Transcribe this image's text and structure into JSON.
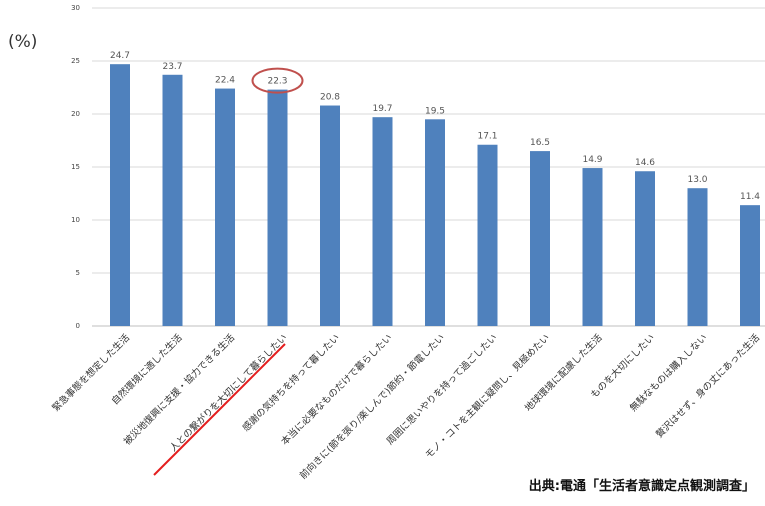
{
  "unit_label": "(%)",
  "source": "出典:電通「生活者意識定点観測調査」",
  "colors": {
    "bar": "#4f81bd",
    "grid": "#d9d9d9",
    "highlight_circle": "#c0504d",
    "highlight_line": "#e41e1e"
  },
  "chart_data": {
    "type": "bar",
    "ylim": [
      0,
      30
    ],
    "yticks": [
      0,
      5,
      10,
      15,
      20,
      25,
      30
    ],
    "grid": true,
    "highlight_index": 3,
    "categories": [
      "緊急事態を想定した生活",
      "自然環境に適した生活",
      "被災地復興に支援・協力できる生活",
      "人との繋がりを大切にして暮らしたい",
      "感謝の気持ちを持って暮したい",
      "本当に必要なものだけで暮らしたい",
      "前向きに(節を張り/楽しんで)節約・節電したい",
      "周囲に思いやりを持って過ごしたい",
      "モノ・コトを主観に疑問し、見極めたい",
      "地球環境に配慮した生活",
      "ものを大切にしたい",
      "無駄なものは購入しない",
      "贅沢はせず、身の丈にあった生活"
    ],
    "values": [
      24.7,
      23.7,
      22.4,
      22.3,
      20.8,
      19.7,
      19.5,
      17.1,
      16.5,
      14.9,
      14.6,
      13.0,
      11.4
    ],
    "value_labels": [
      "24.7",
      "23.7",
      "22.4",
      "22.3",
      "20.8",
      "19.7",
      "19.5",
      "17.1",
      "16.5",
      "14.9",
      "14.6",
      "13.0",
      "11.4"
    ]
  }
}
